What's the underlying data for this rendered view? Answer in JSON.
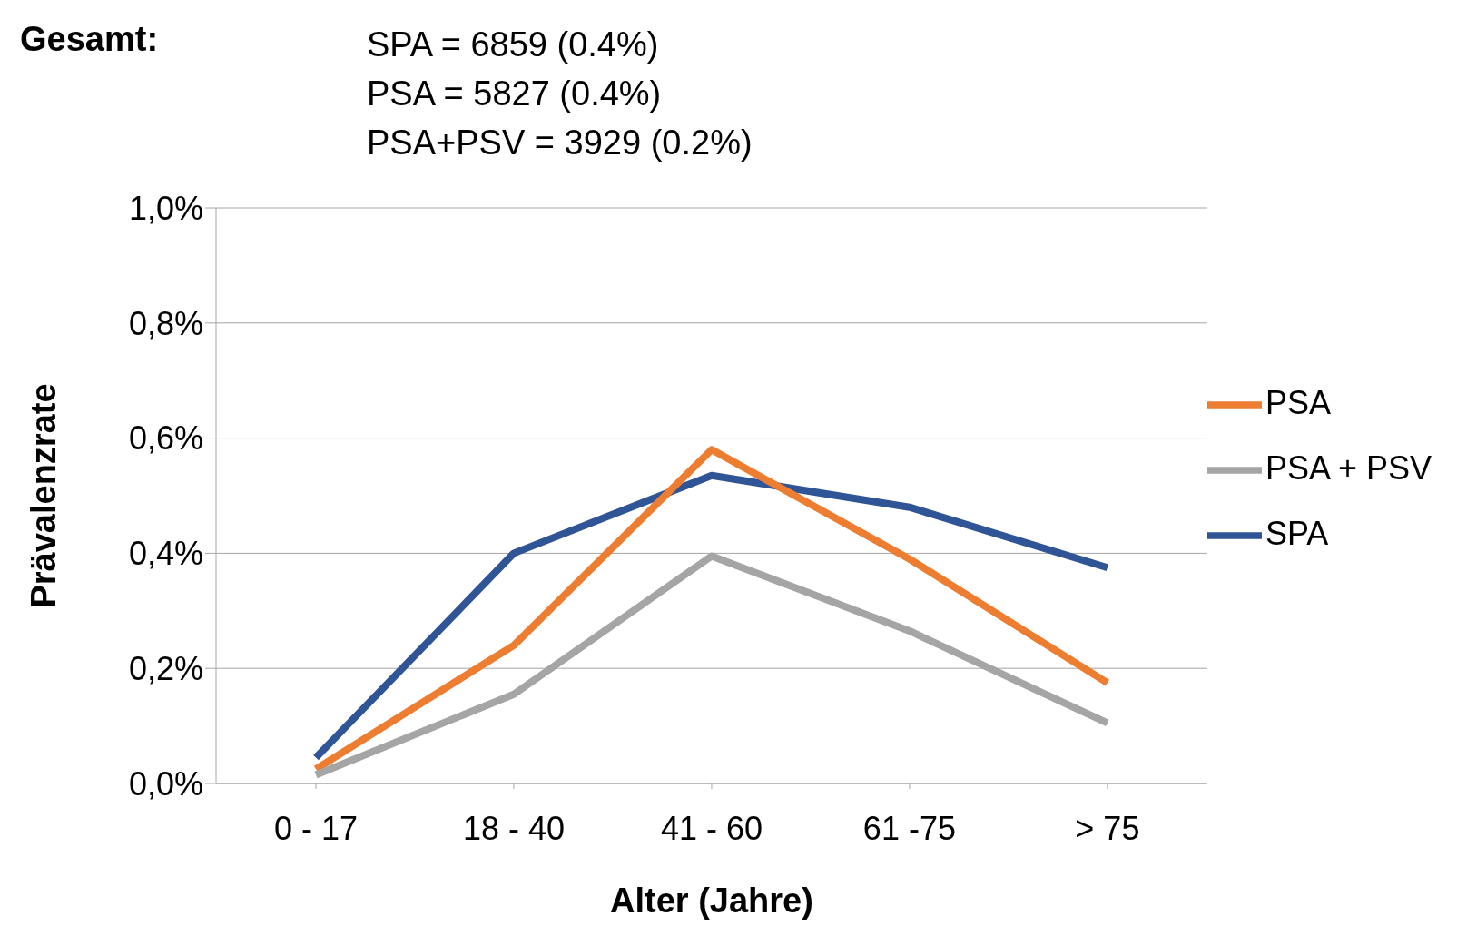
{
  "chart_data": {
    "type": "line",
    "xlabel": "Alter (Jahre)",
    "ylabel": "Prävalenzrate",
    "annotations": [
      "Gesamt:",
      "SPA = 6859 (0.4%)",
      "PSA = 5827 (0.4%)",
      "PSA+PSV = 3929 (0.2%)"
    ],
    "categories": [
      "0 - 17",
      "18 - 40",
      "41 - 60",
      "61 -75",
      "> 75"
    ],
    "series": [
      {
        "name": "SPA",
        "color": "#2f5597",
        "values": [
          0.045,
          0.4,
          0.535,
          0.48,
          0.375
        ]
      },
      {
        "name": "PSA",
        "color": "#ed7d31",
        "values": [
          0.025,
          0.24,
          0.58,
          0.39,
          0.175
        ]
      },
      {
        "name": "PSA + PSV",
        "color": "#a5a5a5",
        "values": [
          0.015,
          0.155,
          0.395,
          0.265,
          0.105
        ]
      }
    ],
    "ylim": [
      0,
      1
    ],
    "yticks": [
      {
        "value": 0,
        "label": "0,0%"
      },
      {
        "value": 0.2,
        "label": "0,2%"
      },
      {
        "value": 0.4,
        "label": "0,4%"
      },
      {
        "value": 0.6,
        "label": "0,6%"
      },
      {
        "value": 0.8,
        "label": "0,8%"
      },
      {
        "value": 1,
        "label": "1,0%"
      }
    ],
    "grid": "y",
    "legend": "right",
    "marker": "none",
    "line_style": "solid"
  }
}
